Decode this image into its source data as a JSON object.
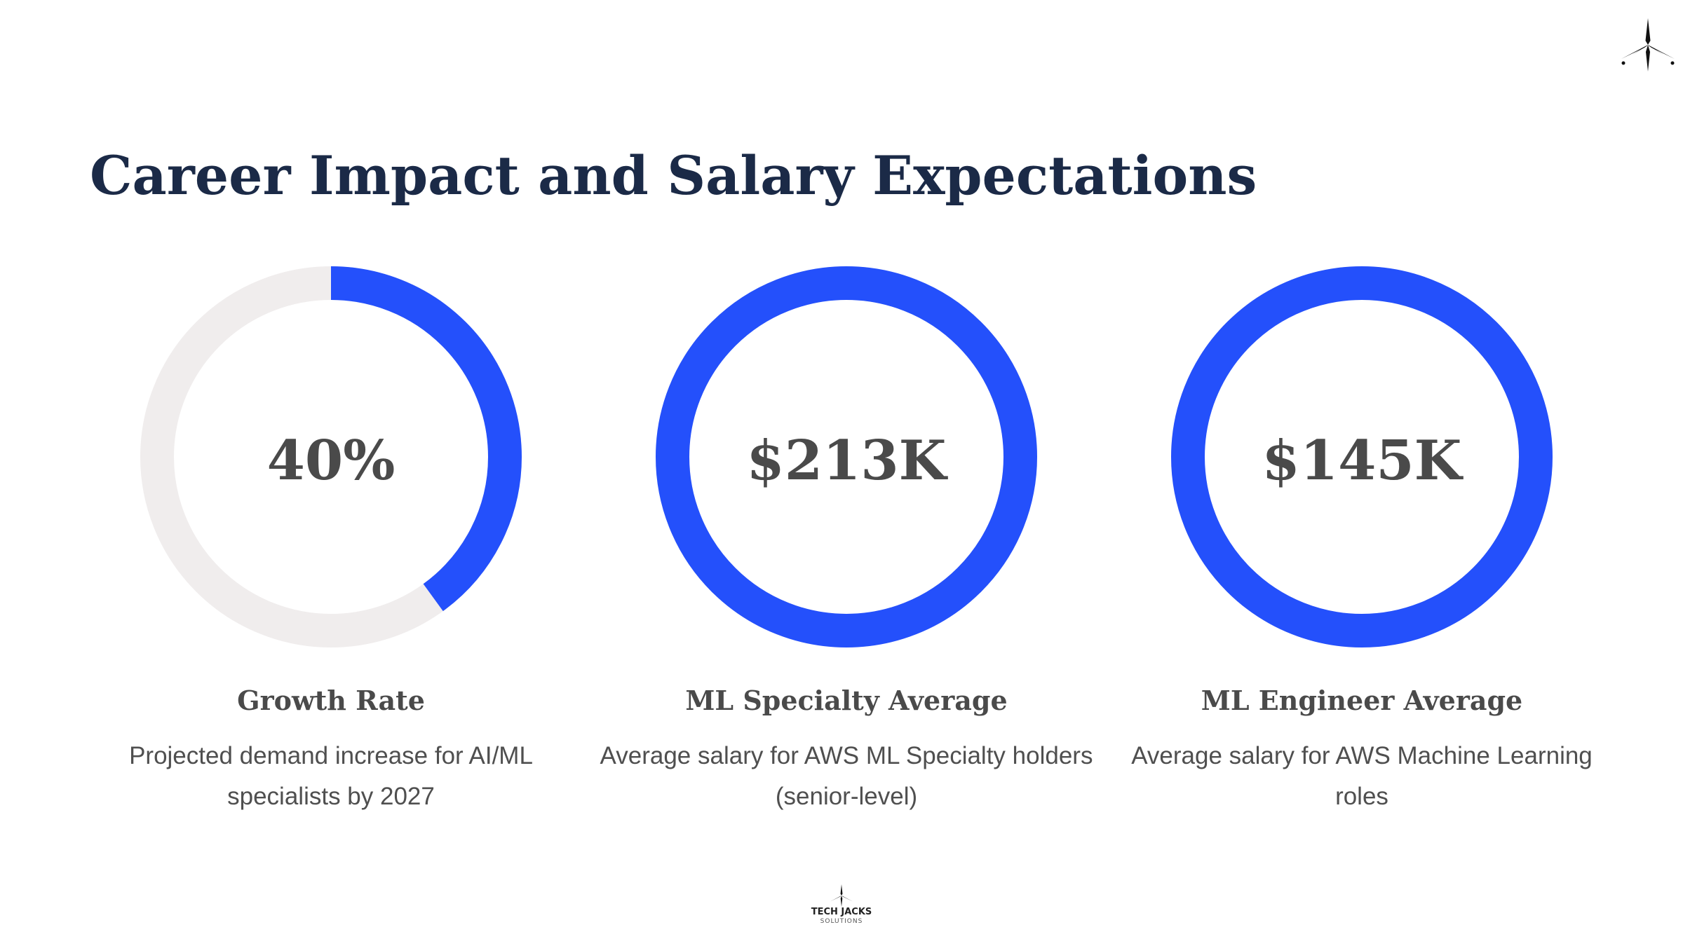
{
  "slide": {
    "title": "Career Impact and Salary Expectations"
  },
  "colors": {
    "title": "#1b2a47",
    "accent": "#2450fb",
    "track": "#f0eded",
    "value_text": "#4a4a4a",
    "body_text": "#4f4f4f"
  },
  "chart_data": [
    {
      "type": "pie",
      "variant": "donut",
      "value_label": "40%",
      "fraction": 0.4,
      "label": "Growth Rate",
      "description": "Projected demand increase for AI/ML specialists by 2027"
    },
    {
      "type": "pie",
      "variant": "donut",
      "value_label": "$213K",
      "fraction": 1.0,
      "label": "ML Specialty Average",
      "description": "Average salary for AWS ML Specialty holders (senior-level)"
    },
    {
      "type": "pie",
      "variant": "donut",
      "value_label": "$145K",
      "fraction": 1.0,
      "label": "ML Engineer Average",
      "description": "Average salary for AWS Machine Learning roles"
    }
  ],
  "icons": {
    "corner": "star-compass-icon",
    "footer": "star-compass-icon"
  },
  "footer": {
    "brand": "TECH JACKS",
    "sub": "SOLUTIONS"
  }
}
